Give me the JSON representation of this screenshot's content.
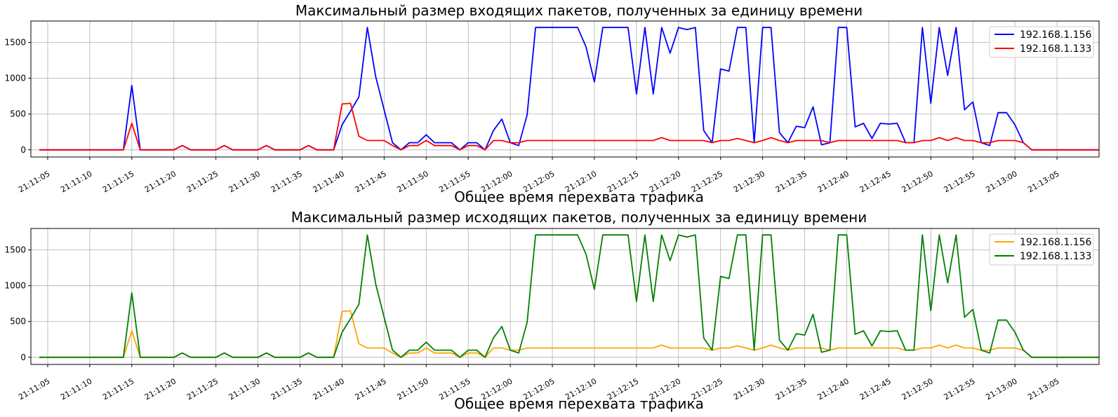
{
  "chart_data": [
    {
      "type": "line",
      "title": "Максимальный размер входящих пакетов, полученных за единицу времени",
      "xlabel": "Общее время перехвата трафика",
      "ylabel": "",
      "ylim": [
        -100,
        1800
      ],
      "yticks": [
        0,
        500,
        1000,
        1500
      ],
      "xlim": [
        "21:11:03",
        "21:13:10"
      ],
      "xticks": [
        "21:11:05",
        "21:11:10",
        "21:11:15",
        "21:11:20",
        "21:11:25",
        "21:11:30",
        "21:11:35",
        "21:11:40",
        "21:11:45",
        "21:11:50",
        "21:11:55",
        "21:12:00",
        "21:12:05",
        "21:12:10",
        "21:12:15",
        "21:12:20",
        "21:12:25",
        "21:12:30",
        "21:12:35",
        "21:12:40",
        "21:12:45",
        "21:12:50",
        "21:12:55",
        "21:13:00",
        "21:13:05"
      ],
      "grid": true,
      "legend_position": "top-right",
      "x_start": "21:11:04",
      "x_step_seconds": 1,
      "series": [
        {
          "name": "192.168.1.156",
          "color": "#0000ff",
          "values": [
            0,
            0,
            0,
            0,
            0,
            0,
            0,
            0,
            0,
            0,
            0,
            900,
            0,
            0,
            0,
            0,
            0,
            60,
            0,
            0,
            0,
            0,
            60,
            0,
            0,
            0,
            0,
            60,
            0,
            0,
            0,
            0,
            60,
            0,
            0,
            0,
            350,
            540,
            740,
            1710,
            1020,
            560,
            100,
            0,
            100,
            100,
            210,
            100,
            100,
            100,
            0,
            100,
            100,
            0,
            270,
            430,
            100,
            60,
            490,
            1710,
            1710,
            1710,
            1710,
            1710,
            1710,
            1440,
            950,
            1710,
            1710,
            1710,
            1710,
            780,
            1710,
            780,
            1710,
            1350,
            1710,
            1680,
            1710,
            270,
            100,
            1130,
            1100,
            1710,
            1710,
            100,
            1710,
            1710,
            240,
            100,
            330,
            310,
            600,
            70,
            100,
            1710,
            1710,
            320,
            370,
            160,
            370,
            360,
            370,
            100,
            100,
            1710,
            650,
            1710,
            1040,
            1710,
            560,
            670,
            100,
            60,
            520,
            520,
            350,
            100,
            0,
            0,
            0,
            0,
            0,
            0,
            0,
            0,
            0
          ]
        },
        {
          "name": "192.168.1.133",
          "color": "#ff0000",
          "values": [
            0,
            0,
            0,
            0,
            0,
            0,
            0,
            0,
            0,
            0,
            0,
            370,
            0,
            0,
            0,
            0,
            0,
            60,
            0,
            0,
            0,
            0,
            60,
            0,
            0,
            0,
            0,
            60,
            0,
            0,
            0,
            0,
            60,
            0,
            0,
            0,
            640,
            650,
            190,
            130,
            130,
            130,
            60,
            0,
            60,
            60,
            130,
            60,
            60,
            60,
            0,
            60,
            60,
            0,
            130,
            130,
            100,
            100,
            130,
            130,
            130,
            130,
            130,
            130,
            130,
            130,
            130,
            130,
            130,
            130,
            130,
            130,
            130,
            130,
            170,
            130,
            130,
            130,
            130,
            130,
            100,
            130,
            130,
            160,
            130,
            100,
            130,
            170,
            130,
            100,
            130,
            130,
            130,
            130,
            100,
            130,
            130,
            130,
            130,
            130,
            130,
            130,
            130,
            100,
            100,
            130,
            130,
            170,
            130,
            170,
            130,
            130,
            100,
            100,
            130,
            130,
            130,
            100,
            0,
            0,
            0,
            0,
            0,
            0,
            0,
            0,
            0
          ]
        }
      ]
    },
    {
      "type": "line",
      "title": "Максимальный размер исходящих пакетов, полученных за единицу времени",
      "xlabel": "Общее время перехвата трафика",
      "ylabel": "",
      "ylim": [
        -100,
        1800
      ],
      "yticks": [
        0,
        500,
        1000,
        1500
      ],
      "xlim": [
        "21:11:03",
        "21:13:10"
      ],
      "xticks": [
        "21:11:05",
        "21:11:10",
        "21:11:15",
        "21:11:20",
        "21:11:25",
        "21:11:30",
        "21:11:35",
        "21:11:40",
        "21:11:45",
        "21:11:50",
        "21:11:55",
        "21:12:00",
        "21:12:05",
        "21:12:10",
        "21:12:15",
        "21:12:20",
        "21:12:25",
        "21:12:30",
        "21:12:35",
        "21:12:40",
        "21:12:45",
        "21:12:50",
        "21:12:55",
        "21:13:00",
        "21:13:05"
      ],
      "grid": true,
      "legend_position": "top-right",
      "x_start": "21:11:04",
      "x_step_seconds": 1,
      "series": [
        {
          "name": "192.168.1.156",
          "color": "#ffa500",
          "values": [
            0,
            0,
            0,
            0,
            0,
            0,
            0,
            0,
            0,
            0,
            0,
            370,
            0,
            0,
            0,
            0,
            0,
            60,
            0,
            0,
            0,
            0,
            60,
            0,
            0,
            0,
            0,
            60,
            0,
            0,
            0,
            0,
            60,
            0,
            0,
            0,
            640,
            650,
            190,
            130,
            130,
            130,
            60,
            0,
            60,
            60,
            130,
            60,
            60,
            60,
            0,
            60,
            60,
            0,
            130,
            130,
            100,
            100,
            130,
            130,
            130,
            130,
            130,
            130,
            130,
            130,
            130,
            130,
            130,
            130,
            130,
            130,
            130,
            130,
            170,
            130,
            130,
            130,
            130,
            130,
            100,
            130,
            130,
            160,
            130,
            100,
            130,
            170,
            130,
            100,
            130,
            130,
            130,
            130,
            100,
            130,
            130,
            130,
            130,
            130,
            130,
            130,
            130,
            100,
            100,
            130,
            130,
            170,
            130,
            170,
            130,
            130,
            100,
            100,
            130,
            130,
            130,
            100,
            0,
            0,
            0,
            0,
            0,
            0,
            0,
            0,
            0
          ]
        },
        {
          "name": "192.168.1.133",
          "color": "#008000",
          "values": [
            0,
            0,
            0,
            0,
            0,
            0,
            0,
            0,
            0,
            0,
            0,
            900,
            0,
            0,
            0,
            0,
            0,
            60,
            0,
            0,
            0,
            0,
            60,
            0,
            0,
            0,
            0,
            60,
            0,
            0,
            0,
            0,
            60,
            0,
            0,
            0,
            350,
            540,
            740,
            1710,
            1020,
            560,
            100,
            0,
            100,
            100,
            210,
            100,
            100,
            100,
            0,
            100,
            100,
            0,
            270,
            430,
            100,
            60,
            490,
            1710,
            1710,
            1710,
            1710,
            1710,
            1710,
            1440,
            950,
            1710,
            1710,
            1710,
            1710,
            780,
            1710,
            780,
            1710,
            1350,
            1710,
            1680,
            1710,
            270,
            100,
            1130,
            1100,
            1710,
            1710,
            100,
            1710,
            1710,
            240,
            100,
            330,
            310,
            600,
            70,
            100,
            1710,
            1710,
            320,
            370,
            160,
            370,
            360,
            370,
            100,
            100,
            1710,
            650,
            1710,
            1040,
            1710,
            560,
            670,
            100,
            60,
            520,
            520,
            350,
            100,
            0,
            0,
            0,
            0,
            0,
            0,
            0,
            0,
            0
          ]
        }
      ]
    }
  ]
}
